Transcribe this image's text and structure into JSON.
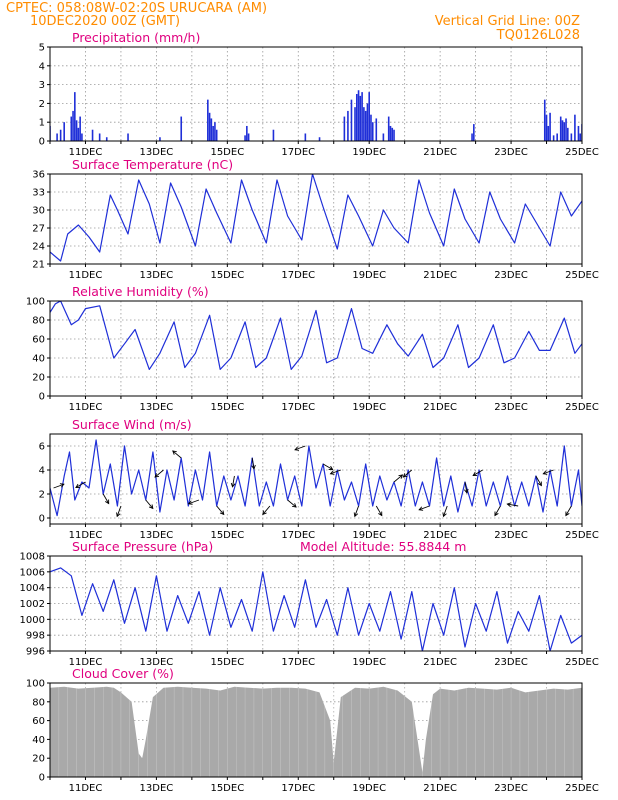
{
  "header": {
    "line1_left": "CPTEC:    058:08W-02:20S    URUCARA (AM)",
    "line2_left": "10DEC2020 00Z (GMT)",
    "line2_right": "Vertical Grid Line: 00Z",
    "line3_right": "TQ0126L028"
  },
  "colors": {
    "header": "#ff8c00",
    "panel_title": "#e0007f",
    "series": "#1f2fd8",
    "cloud": "#a9a9a9",
    "grid": "#999999",
    "frame": "#000000"
  },
  "chart_data": [
    {
      "id": "precip",
      "type": "bar",
      "title": "Precipitation  (mm/h)",
      "ylim": [
        0,
        5
      ],
      "yticks": [
        0,
        1,
        2,
        3,
        4,
        5
      ],
      "x_tick_labels": [
        "11DEC",
        "13DEC",
        "15DEC",
        "17DEC",
        "19DEC",
        "21DEC",
        "23DEC",
        "25DEC"
      ],
      "x": [
        0.0,
        0.2,
        0.3,
        0.4,
        0.6,
        0.65,
        0.7,
        0.75,
        0.8,
        0.85,
        0.9,
        1.2,
        1.4,
        1.6,
        2.2,
        3.1,
        3.7,
        4.45,
        4.5,
        4.55,
        4.6,
        4.65,
        4.7,
        5.5,
        5.55,
        5.6,
        6.3,
        7.2,
        7.6,
        8.3,
        8.4,
        8.5,
        8.6,
        8.65,
        8.7,
        8.75,
        8.8,
        8.85,
        8.9,
        8.95,
        9.0,
        9.05,
        9.1,
        9.2,
        9.4,
        9.55,
        9.6,
        9.65,
        9.7,
        11.9,
        11.95,
        13.95,
        14.0,
        14.05,
        14.1,
        14.2,
        14.3,
        14.4,
        14.45,
        14.5,
        14.55,
        14.6,
        14.7,
        14.8,
        14.9,
        14.95,
        15.0
      ],
      "values": [
        0.8,
        0.4,
        0.6,
        1.0,
        1.3,
        1.6,
        2.6,
        1.1,
        0.7,
        1.3,
        0.4,
        0.6,
        0.4,
        0.2,
        0.4,
        0.2,
        1.3,
        2.2,
        1.5,
        1.2,
        0.8,
        1.0,
        0.6,
        0.3,
        0.8,
        0.4,
        0.6,
        0.4,
        0.2,
        1.3,
        1.6,
        2.2,
        1.8,
        2.5,
        2.7,
        2.4,
        2.6,
        1.8,
        1.6,
        2.0,
        2.6,
        1.4,
        1.0,
        1.2,
        0.4,
        1.3,
        0.8,
        0.7,
        0.6,
        0.4,
        0.9,
        2.2,
        1.4,
        0.8,
        1.5,
        0.3,
        0.4,
        1.3,
        1.1,
        1.0,
        1.2,
        0.7,
        0.4,
        1.4,
        0.8,
        0.4,
        0.9
      ]
    },
    {
      "id": "temp",
      "type": "line",
      "title": "Surface Temperature (nC)",
      "ylim": [
        21,
        36
      ],
      "yticks": [
        21,
        24,
        27,
        30,
        33,
        36
      ],
      "x_tick_labels": [
        "11DEC",
        "13DEC",
        "15DEC",
        "17DEC",
        "19DEC",
        "21DEC",
        "23DEC",
        "25DEC"
      ],
      "x": [
        0.0,
        0.3,
        0.5,
        0.8,
        1.1,
        1.4,
        1.7,
        1.9,
        2.2,
        2.5,
        2.8,
        3.1,
        3.4,
        3.7,
        4.1,
        4.4,
        4.7,
        5.1,
        5.4,
        5.7,
        6.1,
        6.4,
        6.7,
        7.1,
        7.4,
        7.7,
        8.1,
        8.4,
        8.7,
        9.1,
        9.4,
        9.7,
        10.1,
        10.4,
        10.7,
        11.1,
        11.4,
        11.7,
        12.1,
        12.4,
        12.7,
        13.1,
        13.4,
        13.7,
        14.1,
        14.4,
        14.7,
        15.0
      ],
      "values": [
        23.0,
        21.5,
        26.0,
        27.5,
        25.5,
        23.0,
        32.5,
        30.0,
        26.0,
        35.0,
        31.0,
        24.5,
        34.5,
        30.5,
        24.0,
        33.5,
        29.5,
        24.5,
        35.0,
        30.0,
        24.5,
        35.0,
        29.0,
        25.0,
        36.0,
        30.5,
        23.5,
        32.5,
        29.0,
        24.0,
        30.0,
        27.0,
        24.5,
        35.0,
        29.5,
        24.0,
        33.5,
        28.5,
        24.5,
        33.0,
        28.5,
        24.5,
        31.0,
        28.0,
        24.0,
        33.0,
        29.0,
        31.5
      ]
    },
    {
      "id": "rh",
      "type": "line",
      "title": "Relative Humidity (%)",
      "ylim": [
        0,
        100
      ],
      "yticks": [
        0,
        20,
        40,
        60,
        80,
        100
      ],
      "x_tick_labels": [
        "11DEC",
        "13DEC",
        "15DEC",
        "17DEC",
        "19DEC",
        "21DEC",
        "23DEC",
        "25DEC"
      ],
      "x": [
        0.0,
        0.15,
        0.3,
        0.6,
        0.8,
        1.0,
        1.4,
        1.8,
        2.1,
        2.4,
        2.8,
        3.1,
        3.5,
        3.8,
        4.1,
        4.5,
        4.8,
        5.1,
        5.5,
        5.8,
        6.1,
        6.5,
        6.8,
        7.1,
        7.5,
        7.8,
        8.1,
        8.5,
        8.8,
        9.1,
        9.5,
        9.8,
        10.1,
        10.5,
        10.8,
        11.1,
        11.5,
        11.8,
        12.1,
        12.5,
        12.8,
        13.1,
        13.5,
        13.8,
        14.1,
        14.5,
        14.8,
        15.0
      ],
      "values": [
        88,
        97,
        100,
        75,
        80,
        92,
        95,
        40,
        55,
        70,
        28,
        45,
        78,
        30,
        45,
        85,
        28,
        40,
        78,
        30,
        40,
        82,
        28,
        42,
        90,
        35,
        40,
        92,
        50,
        45,
        75,
        55,
        42,
        65,
        30,
        40,
        75,
        30,
        40,
        75,
        35,
        40,
        68,
        48,
        48,
        82,
        45,
        55
      ]
    },
    {
      "id": "wind",
      "type": "line",
      "title": "Surface Wind (m/s)",
      "ylim": [
        -0.5,
        7
      ],
      "yticks": [
        0,
        2,
        4,
        6
      ],
      "x_tick_labels": [
        "11DEC",
        "13DEC",
        "15DEC",
        "17DEC",
        "19DEC",
        "21DEC",
        "23DEC",
        "25DEC"
      ],
      "x": [
        0.0,
        0.2,
        0.4,
        0.55,
        0.7,
        0.9,
        1.1,
        1.3,
        1.5,
        1.7,
        1.9,
        2.1,
        2.3,
        2.5,
        2.7,
        2.9,
        3.1,
        3.3,
        3.5,
        3.7,
        3.9,
        4.1,
        4.3,
        4.5,
        4.7,
        4.9,
        5.1,
        5.3,
        5.5,
        5.7,
        5.9,
        6.1,
        6.3,
        6.5,
        6.7,
        6.9,
        7.1,
        7.3,
        7.5,
        7.7,
        7.9,
        8.1,
        8.3,
        8.5,
        8.7,
        8.9,
        9.1,
        9.3,
        9.5,
        9.7,
        9.9,
        10.1,
        10.3,
        10.5,
        10.7,
        10.9,
        11.1,
        11.3,
        11.5,
        11.7,
        11.9,
        12.1,
        12.3,
        12.5,
        12.7,
        12.9,
        13.1,
        13.3,
        13.5,
        13.7,
        13.9,
        14.1,
        14.3,
        14.5,
        14.7,
        14.9,
        15.0
      ],
      "values": [
        2.5,
        0.2,
        3.5,
        5.5,
        1.5,
        3.0,
        2.5,
        6.5,
        2.0,
        4.5,
        1.0,
        6.0,
        2.0,
        4.0,
        1.5,
        5.5,
        0.5,
        4.0,
        1.5,
        5.0,
        1.0,
        4.0,
        1.5,
        5.5,
        1.0,
        3.5,
        1.5,
        3.5,
        1.0,
        5.0,
        1.0,
        3.0,
        1.0,
        4.5,
        1.5,
        3.5,
        1.0,
        6.0,
        2.5,
        4.5,
        1.0,
        4.0,
        1.5,
        3.0,
        1.0,
        4.5,
        1.0,
        3.5,
        1.5,
        3.0,
        1.0,
        4.0,
        1.0,
        3.0,
        1.0,
        5.0,
        1.0,
        3.5,
        0.5,
        3.0,
        1.0,
        4.0,
        1.0,
        3.0,
        1.0,
        3.5,
        1.0,
        3.0,
        1.0,
        3.5,
        0.5,
        4.0,
        1.0,
        6.0,
        1.0,
        4.0,
        1.0
      ],
      "arrows_x": [
        0.1,
        1.0,
        1.5,
        2.0,
        2.7,
        3.2,
        3.7,
        4.2,
        4.7,
        5.2,
        5.7,
        6.2,
        6.7,
        7.2,
        7.7,
        8.2,
        8.7,
        9.2,
        9.7,
        10.2,
        10.7,
        11.2,
        11.7,
        12.2,
        12.7,
        13.2,
        13.7,
        14.2,
        14.7
      ],
      "arrows_dir": [
        20,
        210,
        300,
        250,
        310,
        220,
        140,
        200,
        310,
        260,
        280,
        230,
        320,
        200,
        330,
        200,
        250,
        300,
        40,
        220,
        200,
        250,
        280,
        210,
        240,
        170,
        300,
        200,
        240
      ]
    },
    {
      "id": "pres",
      "type": "line",
      "title": "Surface Pressure (hPa)",
      "annotation": "Model Altitude: 55.8844  m",
      "ylim": [
        996,
        1008
      ],
      "yticks": [
        996,
        998,
        1000,
        1002,
        1004,
        1006,
        1008
      ],
      "x_tick_labels": [
        "11DEC",
        "13DEC",
        "15DEC",
        "17DEC",
        "19DEC",
        "21DEC",
        "23DEC",
        "25DEC"
      ],
      "x": [
        0.0,
        0.3,
        0.6,
        0.9,
        1.2,
        1.5,
        1.8,
        2.1,
        2.4,
        2.7,
        3.0,
        3.3,
        3.6,
        3.9,
        4.2,
        4.5,
        4.8,
        5.1,
        5.4,
        5.7,
        6.0,
        6.3,
        6.6,
        6.9,
        7.2,
        7.5,
        7.8,
        8.1,
        8.4,
        8.7,
        9.0,
        9.3,
        9.6,
        9.9,
        10.2,
        10.5,
        10.8,
        11.1,
        11.4,
        11.7,
        12.0,
        12.3,
        12.6,
        12.9,
        13.2,
        13.5,
        13.8,
        14.1,
        14.4,
        14.7,
        15.0
      ],
      "values": [
        1006.0,
        1006.5,
        1005.5,
        1000.5,
        1004.5,
        1001.0,
        1005.0,
        999.5,
        1004.0,
        998.5,
        1005.5,
        998.5,
        1003.0,
        999.5,
        1003.5,
        998.0,
        1004.0,
        999.0,
        1002.5,
        998.5,
        1006.0,
        998.5,
        1003.0,
        999.0,
        1005.0,
        999.0,
        1002.5,
        998.0,
        1004.0,
        998.0,
        1002.0,
        998.5,
        1003.5,
        997.5,
        1003.5,
        996.0,
        1002.0,
        998.0,
        1004.0,
        996.5,
        1002.0,
        998.5,
        1003.5,
        997.0,
        1001.0,
        998.5,
        1003.0,
        996.0,
        1000.5,
        997.0,
        998.0
      ]
    },
    {
      "id": "cloud",
      "type": "area",
      "title": "Cloud Cover (%)",
      "ylim": [
        0,
        100
      ],
      "yticks": [
        0,
        20,
        40,
        60,
        80,
        100
      ],
      "x_tick_labels": [
        "11DEC",
        "13DEC",
        "15DEC",
        "17DEC",
        "19DEC",
        "21DEC",
        "23DEC",
        "25DEC"
      ],
      "x": [
        0.0,
        0.4,
        0.8,
        1.2,
        1.6,
        1.8,
        2.0,
        2.3,
        2.5,
        2.6,
        2.7,
        2.9,
        3.2,
        3.6,
        4.0,
        4.4,
        4.8,
        5.2,
        5.6,
        6.0,
        6.4,
        6.8,
        7.2,
        7.6,
        7.9,
        8.0,
        8.2,
        8.6,
        9.0,
        9.4,
        9.8,
        10.2,
        10.4,
        10.5,
        10.6,
        10.8,
        11.0,
        11.4,
        11.8,
        12.2,
        12.6,
        13.0,
        13.4,
        13.8,
        14.2,
        14.6,
        15.0
      ],
      "values": [
        95,
        96,
        94,
        95,
        96,
        95,
        90,
        80,
        25,
        20,
        40,
        85,
        95,
        96,
        95,
        94,
        92,
        96,
        95,
        94,
        95,
        95,
        94,
        90,
        60,
        15,
        85,
        95,
        94,
        96,
        92,
        80,
        30,
        5,
        40,
        88,
        94,
        92,
        95,
        94,
        93,
        95,
        90,
        92,
        94,
        93,
        95
      ]
    }
  ]
}
